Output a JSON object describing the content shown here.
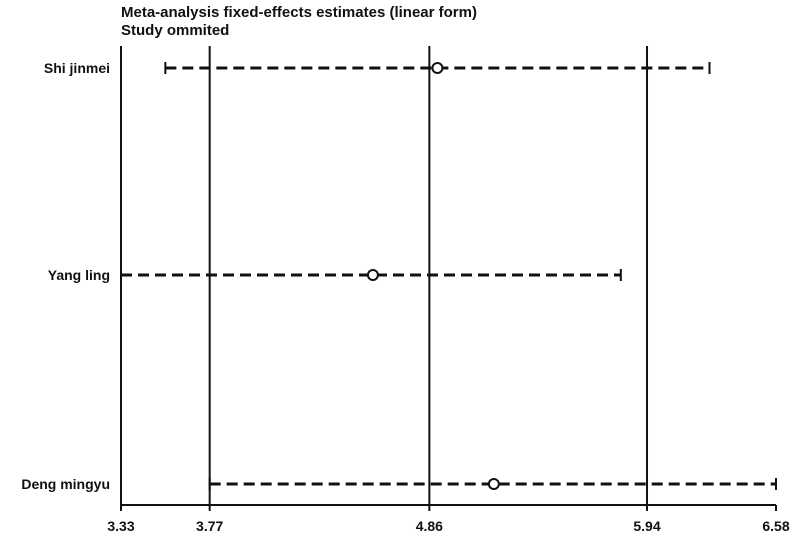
{
  "chart_data": {
    "type": "forest",
    "title": "Meta-analysis fixed-effects estimates (linear form)",
    "subtitle": "Study ommited",
    "xlim": [
      3.33,
      6.58
    ],
    "x_ticks": [
      "3.33",
      "3.77",
      "4.86",
      "5.94",
      "6.58"
    ],
    "reference_lines": [
      3.77,
      4.86,
      5.94
    ],
    "studies": [
      {
        "name": "Shi jinmei",
        "estimate": 4.9,
        "lower": 3.55,
        "upper": 6.25
      },
      {
        "name": "Yang ling",
        "estimate": 4.58,
        "lower": 3.33,
        "upper": 5.81
      },
      {
        "name": "Deng mingyu",
        "estimate": 5.18,
        "lower": 3.77,
        "upper": 6.58
      }
    ]
  }
}
